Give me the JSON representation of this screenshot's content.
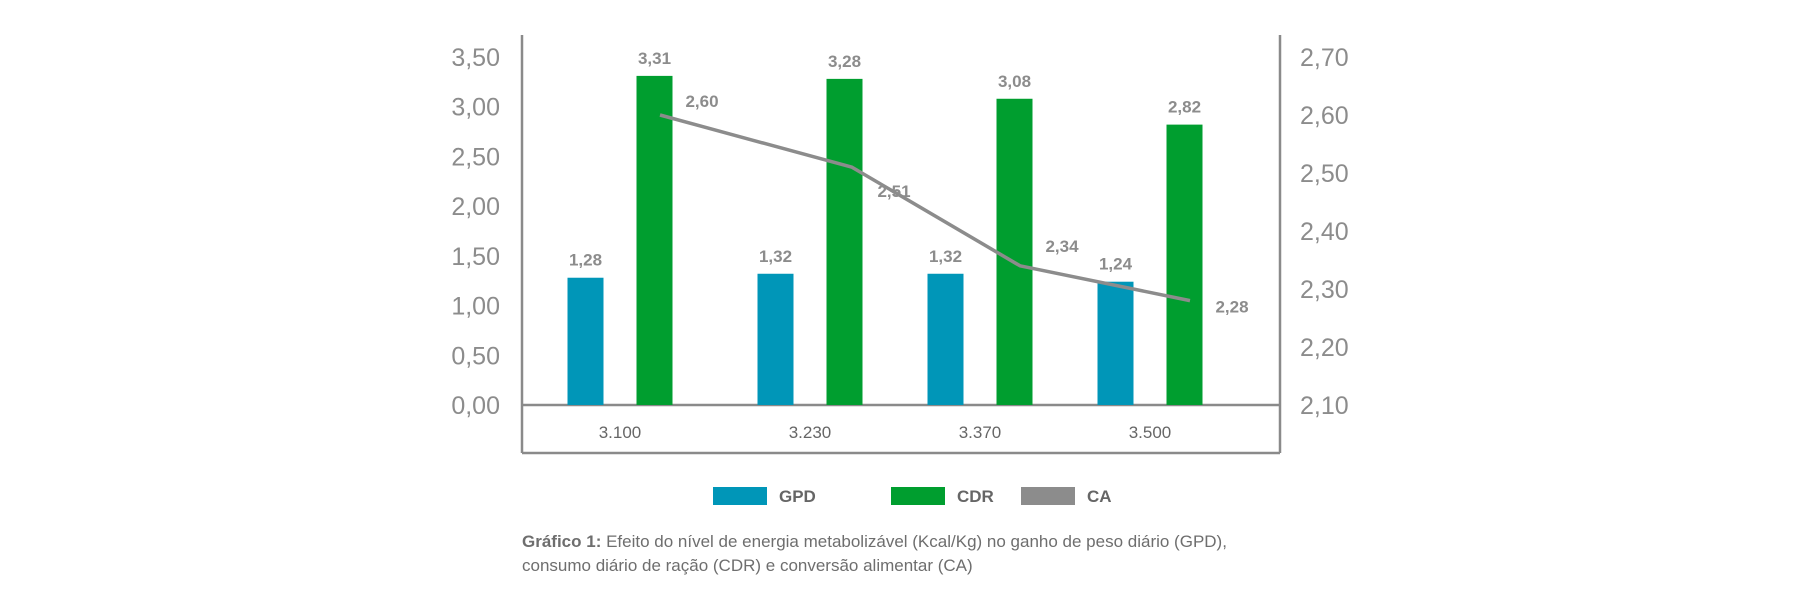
{
  "chart_data": {
    "type": "bar",
    "categories": [
      "3.100",
      "3.230",
      "3.370",
      "3.500"
    ],
    "series": [
      {
        "name": "GPD",
        "type": "bar",
        "axis": "left",
        "color": "#0096b8",
        "values": [
          1.28,
          1.32,
          1.32,
          1.24
        ],
        "labels": [
          "1,28",
          "1,32",
          "1,32",
          "1,24"
        ]
      },
      {
        "name": "CDR",
        "type": "bar",
        "axis": "left",
        "color": "#009e2f",
        "values": [
          3.31,
          3.28,
          3.08,
          2.82
        ],
        "labels": [
          "3,31",
          "3,28",
          "3,08",
          "2,82"
        ]
      },
      {
        "name": "CA",
        "type": "line",
        "axis": "right",
        "color": "#8c8c8c",
        "values": [
          2.6,
          2.51,
          2.34,
          2.28
        ],
        "labels": [
          "2,60",
          "2,51",
          "2,34",
          "2,28"
        ]
      }
    ],
    "y_left": {
      "min": 0,
      "max": 3.5,
      "ticks": [
        "0,00",
        "0,50",
        "1,00",
        "1,50",
        "2,00",
        "2,50",
        "3,00",
        "3,50"
      ]
    },
    "y_right": {
      "min": 2.1,
      "max": 2.7,
      "ticks": [
        "2,10",
        "2,20",
        "2,30",
        "2,40",
        "2,50",
        "2,60",
        "2,70"
      ]
    },
    "grid": false,
    "legend": "bottom"
  },
  "caption": {
    "bold": "Gráfico 1:",
    "text": " Efeito do nível de energia metabolizável (Kcal/Kg) no ganho de peso diário (GPD), consumo diário de ração (CDR) e conversão alimentar (CA)"
  }
}
